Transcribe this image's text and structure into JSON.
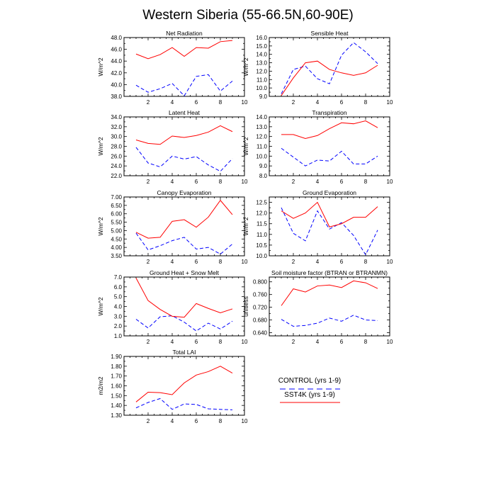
{
  "title": "Western Siberia (55-66.5N,60-90E)",
  "legend": {
    "control_label": "CONTROL (yrs 1-9)",
    "sst4k_label": "SST4K (yrs 1-9)",
    "control_color": "#0000ff",
    "sst4k_color": "#ff0000"
  },
  "chart_data": [
    {
      "type": "line",
      "title": "Net Radiation",
      "ylabel": "W/m^2",
      "xlim": [
        0,
        10
      ],
      "xticks": [
        2,
        4,
        6,
        8,
        10
      ],
      "ylim": [
        38.0,
        48.0
      ],
      "yticks": [
        38.0,
        40.0,
        42.0,
        44.0,
        46.0,
        48.0
      ],
      "yfmt": 1,
      "x": [
        1,
        2,
        3,
        4,
        5,
        6,
        7,
        8,
        9
      ],
      "series": [
        {
          "name": "CONTROL (yrs 1-9)",
          "values": [
            39.9,
            38.7,
            39.3,
            40.2,
            38.1,
            41.4,
            41.7,
            38.9,
            40.6
          ]
        },
        {
          "name": "SST4K (yrs 1-9)",
          "values": [
            45.2,
            44.4,
            45.1,
            46.3,
            44.8,
            46.3,
            46.2,
            47.3,
            47.5
          ]
        }
      ]
    },
    {
      "type": "line",
      "title": "Sensible Heat",
      "ylabel": "W/m^2",
      "xlim": [
        0,
        10
      ],
      "xticks": [
        2,
        4,
        6,
        8,
        10
      ],
      "ylim": [
        9.0,
        16.0
      ],
      "yticks": [
        9.0,
        10.0,
        11.0,
        12.0,
        13.0,
        14.0,
        15.0,
        16.0
      ],
      "yfmt": 1,
      "x": [
        1,
        2,
        3,
        4,
        5,
        6,
        7,
        8,
        9
      ],
      "series": [
        {
          "name": "CONTROL (yrs 1-9)",
          "values": [
            9.3,
            12.2,
            12.6,
            11.1,
            10.5,
            13.9,
            15.4,
            14.3,
            12.9
          ]
        },
        {
          "name": "SST4K (yrs 1-9)",
          "values": [
            9.1,
            11.2,
            13.0,
            13.2,
            12.2,
            11.8,
            11.5,
            11.8,
            12.7
          ]
        }
      ]
    },
    {
      "type": "line",
      "title": "Latent Heat",
      "ylabel": "W/m^2",
      "xlim": [
        0,
        10
      ],
      "xticks": [
        2,
        4,
        6,
        8,
        10
      ],
      "ylim": [
        22.0,
        34.0
      ],
      "yticks": [
        22.0,
        24.0,
        26.0,
        28.0,
        30.0,
        32.0,
        34.0
      ],
      "yfmt": 1,
      "x": [
        1,
        2,
        3,
        4,
        5,
        6,
        7,
        8,
        9
      ],
      "series": [
        {
          "name": "CONTROL (yrs 1-9)",
          "values": [
            27.8,
            24.6,
            23.8,
            26.0,
            25.4,
            25.9,
            24.2,
            22.9,
            25.5
          ]
        },
        {
          "name": "SST4K (yrs 1-9)",
          "values": [
            29.3,
            28.6,
            28.4,
            30.1,
            29.8,
            30.2,
            30.9,
            32.2,
            31.0
          ]
        }
      ]
    },
    {
      "type": "line",
      "title": "Transpiration",
      "ylabel": "W/m^2",
      "xlim": [
        0,
        10
      ],
      "xticks": [
        2,
        4,
        6,
        8,
        10
      ],
      "ylim": [
        8.0,
        14.0
      ],
      "yticks": [
        8.0,
        9.0,
        10.0,
        11.0,
        12.0,
        13.0,
        14.0
      ],
      "yfmt": 1,
      "x": [
        1,
        2,
        3,
        4,
        5,
        6,
        7,
        8,
        9
      ],
      "series": [
        {
          "name": "CONTROL (yrs 1-9)",
          "values": [
            10.8,
            9.9,
            9.0,
            9.6,
            9.5,
            10.5,
            9.2,
            9.2,
            10.0
          ]
        },
        {
          "name": "SST4K (yrs 1-9)",
          "values": [
            12.2,
            12.2,
            11.8,
            12.1,
            12.8,
            13.4,
            13.3,
            13.6,
            12.9
          ]
        }
      ]
    },
    {
      "type": "line",
      "title": "Canopy Evaporation",
      "ylabel": "W/m^2",
      "xlim": [
        0,
        10
      ],
      "xticks": [
        2,
        4,
        6,
        8,
        10
      ],
      "ylim": [
        3.5,
        7.0
      ],
      "yticks": [
        3.5,
        4.0,
        4.5,
        5.0,
        5.5,
        6.0,
        6.5,
        7.0
      ],
      "yfmt": 2,
      "x": [
        1,
        2,
        3,
        4,
        5,
        6,
        7,
        8,
        9
      ],
      "series": [
        {
          "name": "CONTROL (yrs 1-9)",
          "values": [
            4.85,
            3.85,
            4.1,
            4.4,
            4.6,
            3.9,
            4.0,
            3.6,
            4.2
          ]
        },
        {
          "name": "SST4K (yrs 1-9)",
          "values": [
            4.9,
            4.55,
            4.6,
            5.55,
            5.65,
            5.2,
            5.8,
            6.8,
            5.95
          ]
        }
      ]
    },
    {
      "type": "line",
      "title": "Ground Evaporation",
      "ylabel": "W/m^2",
      "xlim": [
        0,
        10
      ],
      "xticks": [
        2,
        4,
        6,
        8,
        10
      ],
      "ylim": [
        10.0,
        12.75
      ],
      "yticks": [
        10.0,
        10.5,
        11.0,
        11.5,
        12.0,
        12.5
      ],
      "yfmt": 1,
      "x": [
        1,
        2,
        3,
        4,
        5,
        6,
        7,
        8,
        9
      ],
      "series": [
        {
          "name": "CONTROL (yrs 1-9)",
          "values": [
            12.25,
            11.05,
            10.7,
            12.1,
            11.25,
            11.55,
            10.95,
            10.05,
            11.2
          ]
        },
        {
          "name": "SST4K (yrs 1-9)",
          "values": [
            12.1,
            11.75,
            12.0,
            12.5,
            11.35,
            11.5,
            11.8,
            11.8,
            12.3
          ]
        }
      ]
    },
    {
      "type": "line",
      "title": "Ground Heat + Snow Melt",
      "ylabel": "W/m^2",
      "xlim": [
        0,
        10
      ],
      "xticks": [
        2,
        4,
        6,
        8,
        10
      ],
      "ylim": [
        1.0,
        7.0
      ],
      "yticks": [
        1.0,
        2.0,
        3.0,
        4.0,
        5.0,
        6.0,
        7.0
      ],
      "yfmt": 1,
      "x": [
        1,
        2,
        3,
        4,
        5,
        6,
        7,
        8,
        9
      ],
      "series": [
        {
          "name": "CONTROL (yrs 1-9)",
          "values": [
            2.7,
            1.8,
            2.95,
            3.05,
            2.4,
            1.5,
            2.3,
            1.7,
            2.5
          ]
        },
        {
          "name": "SST4K (yrs 1-9)",
          "values": [
            6.9,
            4.6,
            3.7,
            3.0,
            2.9,
            4.3,
            3.8,
            3.35,
            3.75
          ]
        }
      ]
    },
    {
      "type": "line",
      "title": "Soil moisture factor (BTRAN or BTRANMN)",
      "ylabel": "unitless",
      "xlim": [
        0,
        10
      ],
      "xticks": [
        2,
        4,
        6,
        8,
        10
      ],
      "ylim": [
        0.63,
        0.815
      ],
      "yticks": [
        0.64,
        0.68,
        0.72,
        0.76,
        0.8
      ],
      "yfmt": 3,
      "x": [
        1,
        2,
        3,
        4,
        5,
        6,
        7,
        8,
        9
      ],
      "series": [
        {
          "name": "CONTROL (yrs 1-9)",
          "values": [
            0.682,
            0.66,
            0.663,
            0.67,
            0.686,
            0.676,
            0.695,
            0.68,
            0.678
          ]
        },
        {
          "name": "SST4K (yrs 1-9)",
          "values": [
            0.725,
            0.778,
            0.768,
            0.787,
            0.79,
            0.782,
            0.803,
            0.797,
            0.779
          ]
        }
      ]
    },
    {
      "type": "line",
      "title": "Total LAI",
      "ylabel": "m2/m2",
      "xlim": [
        0,
        10
      ],
      "xticks": [
        2,
        4,
        6,
        8,
        10
      ],
      "ylim": [
        1.3,
        1.9
      ],
      "yticks": [
        1.3,
        1.4,
        1.5,
        1.6,
        1.7,
        1.8,
        1.9
      ],
      "yfmt": 2,
      "x": [
        1,
        2,
        3,
        4,
        5,
        6,
        7,
        8,
        9
      ],
      "series": [
        {
          "name": "CONTROL (yrs 1-9)",
          "values": [
            1.375,
            1.43,
            1.47,
            1.36,
            1.415,
            1.41,
            1.365,
            1.36,
            1.355
          ]
        },
        {
          "name": "SST4K (yrs 1-9)",
          "values": [
            1.435,
            1.535,
            1.53,
            1.51,
            1.63,
            1.71,
            1.745,
            1.8,
            1.73
          ]
        }
      ]
    }
  ]
}
